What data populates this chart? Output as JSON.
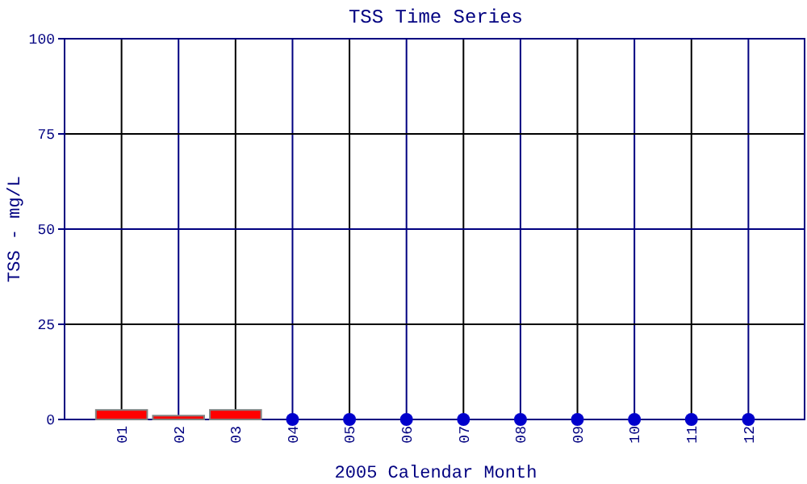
{
  "chart_data": {
    "type": "bar",
    "title": "TSS Time Series",
    "xlabel": "2005 Calendar Month",
    "ylabel": "TSS - mg/L",
    "categories": [
      "01",
      "02",
      "03",
      "04",
      "05",
      "06",
      "07",
      "08",
      "09",
      "10",
      "11",
      "12"
    ],
    "series": [
      {
        "color": "#ff0000",
        "values": [
          2.5,
          1,
          2.5,
          null,
          null,
          null,
          null,
          null,
          null,
          null,
          null,
          null
        ]
      },
      {
        "type": "scatter",
        "color": "#0000cc",
        "marker": "circle",
        "values": [
          null,
          null,
          null,
          0,
          0,
          0,
          0,
          0,
          0,
          0,
          0,
          0
        ]
      }
    ],
    "ylim": [
      0,
      100
    ],
    "yticks": [
      0,
      25,
      50,
      75,
      100
    ],
    "grid": true
  }
}
